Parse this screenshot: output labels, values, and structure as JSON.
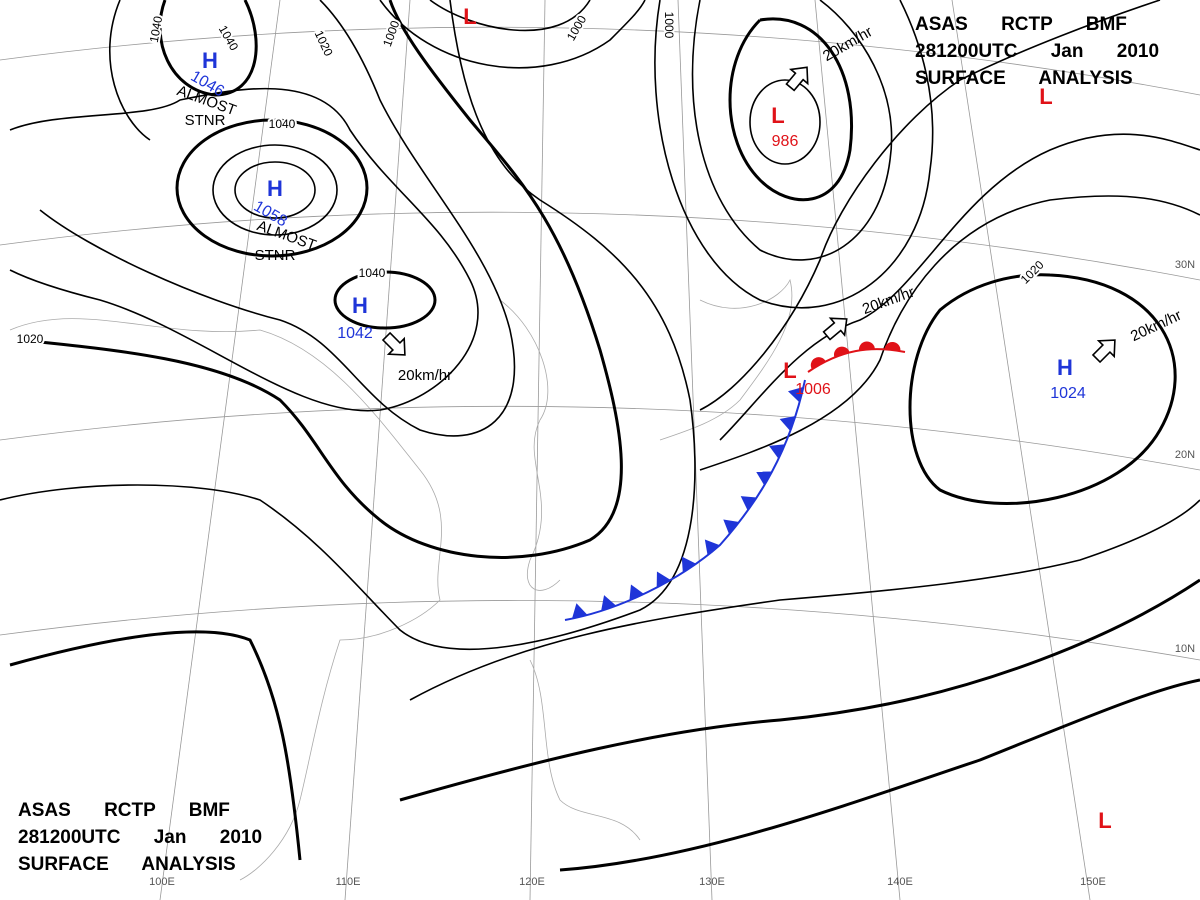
{
  "header": {
    "lines": [
      "ASAS RCTP BMF",
      "281200UTC Jan 2010",
      "SURFACE ANALYSIS"
    ]
  },
  "colors": {
    "H": "#1f35d8",
    "L": "#e01218",
    "cold_front": "#1f35d8",
    "warm_front": "#e01218"
  },
  "centers": [
    {
      "label": "H",
      "value": 1046
    },
    {
      "label": "H",
      "value": 1058
    },
    {
      "label": "H",
      "value": 1042
    },
    {
      "label": "H",
      "value": 1024
    },
    {
      "label": "L",
      "value": 986
    },
    {
      "label": "L",
      "value": 1006
    },
    {
      "label": "L"
    },
    {
      "label": "L"
    },
    {
      "label": "L"
    }
  ],
  "isobar_labels": [
    1040,
    1040,
    1040,
    1040,
    1020,
    1020,
    1020,
    1000,
    1000,
    1000
  ],
  "annotations": {
    "stationary": [
      "ALMOST",
      "STNR",
      "ALMOST",
      "STNR"
    ],
    "motion": [
      "20km/hr",
      "20km/hr",
      "20km/hr",
      "20km/hr"
    ]
  },
  "grid_labels": [
    "100E",
    "110E",
    "120E",
    "130E",
    "140E",
    "150E",
    "10N",
    "20N",
    "30N"
  ]
}
